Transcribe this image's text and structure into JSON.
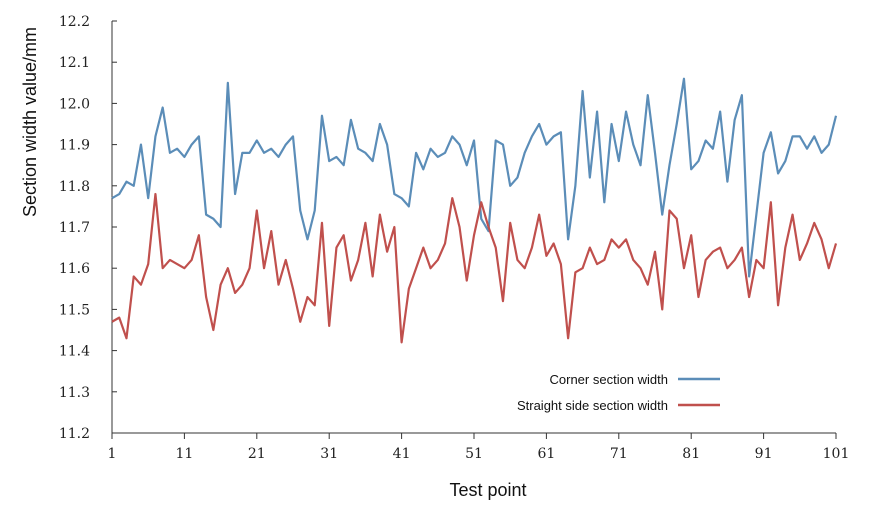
{
  "chart_data": {
    "type": "line",
    "title": "",
    "xlabel": "Test point",
    "ylabel": "Section width value/mm",
    "xlim": [
      1,
      101
    ],
    "ylim": [
      11.2,
      12.2
    ],
    "x_ticks": [
      "1",
      "11",
      "21",
      "31",
      "41",
      "51",
      "61",
      "71",
      "81",
      "91",
      "101"
    ],
    "y_ticks": [
      "11.2",
      "11.3",
      "11.4",
      "11.5",
      "11.6",
      "11.7",
      "11.8",
      "11.9",
      "12.0",
      "12.1",
      "12.2"
    ],
    "grid": false,
    "legend_position": "bottom-right",
    "x": [
      1,
      2,
      3,
      4,
      5,
      6,
      7,
      8,
      9,
      10,
      11,
      12,
      13,
      14,
      15,
      16,
      17,
      18,
      19,
      20,
      21,
      22,
      23,
      24,
      25,
      26,
      27,
      28,
      29,
      30,
      31,
      32,
      33,
      34,
      35,
      36,
      37,
      38,
      39,
      40,
      41,
      42,
      43,
      44,
      45,
      46,
      47,
      48,
      49,
      50,
      51,
      52,
      53,
      54,
      55,
      56,
      57,
      58,
      59,
      60,
      61,
      62,
      63,
      64,
      65,
      66,
      67,
      68,
      69,
      70,
      71,
      72,
      73,
      74,
      75,
      76,
      77,
      78,
      79,
      80,
      81,
      82,
      83,
      84,
      85,
      86,
      87,
      88,
      89,
      90,
      91,
      92,
      93,
      94,
      95,
      96,
      97,
      98,
      99,
      100,
      101
    ],
    "series": [
      {
        "name": "Corner section width",
        "color": "#5b8db8",
        "values": [
          11.77,
          11.78,
          11.81,
          11.8,
          11.9,
          11.77,
          11.92,
          11.99,
          11.88,
          11.89,
          11.87,
          11.9,
          11.92,
          11.73,
          11.72,
          11.7,
          12.05,
          11.78,
          11.88,
          11.88,
          11.91,
          11.88,
          11.89,
          11.87,
          11.9,
          11.92,
          11.74,
          11.67,
          11.74,
          11.97,
          11.86,
          11.87,
          11.85,
          11.96,
          11.89,
          11.88,
          11.86,
          11.95,
          11.9,
          11.78,
          11.77,
          11.75,
          11.88,
          11.84,
          11.89,
          11.87,
          11.88,
          11.92,
          11.9,
          11.85,
          11.91,
          11.72,
          11.69,
          11.91,
          11.9,
          11.8,
          11.82,
          11.88,
          11.92,
          11.95,
          11.9,
          11.92,
          11.93,
          11.67,
          11.8,
          12.03,
          11.82,
          11.98,
          11.76,
          11.95,
          11.86,
          11.98,
          11.9,
          11.85,
          12.02,
          11.88,
          11.73,
          11.85,
          11.95,
          12.06,
          11.84,
          11.86,
          11.91,
          11.89,
          11.98,
          11.81,
          11.96,
          12.02,
          11.58,
          11.73,
          11.88,
          11.93,
          11.83,
          11.86,
          11.92,
          11.92,
          11.89,
          11.92,
          11.88,
          11.9,
          11.97
        ]
      },
      {
        "name": "Straight side section width",
        "color": "#c0504d",
        "values": [
          11.47,
          11.48,
          11.43,
          11.58,
          11.56,
          11.61,
          11.78,
          11.6,
          11.62,
          11.61,
          11.6,
          11.62,
          11.68,
          11.53,
          11.45,
          11.56,
          11.6,
          11.54,
          11.56,
          11.6,
          11.74,
          11.6,
          11.69,
          11.56,
          11.62,
          11.55,
          11.47,
          11.53,
          11.51,
          11.71,
          11.46,
          11.65,
          11.68,
          11.57,
          11.62,
          11.71,
          11.58,
          11.73,
          11.64,
          11.7,
          11.42,
          11.55,
          11.6,
          11.65,
          11.6,
          11.62,
          11.66,
          11.77,
          11.7,
          11.57,
          11.68,
          11.76,
          11.7,
          11.65,
          11.52,
          11.71,
          11.62,
          11.6,
          11.65,
          11.73,
          11.63,
          11.66,
          11.61,
          11.43,
          11.59,
          11.6,
          11.65,
          11.61,
          11.62,
          11.67,
          11.65,
          11.67,
          11.62,
          11.6,
          11.56,
          11.64,
          11.5,
          11.74,
          11.72,
          11.6,
          11.68,
          11.53,
          11.62,
          11.64,
          11.65,
          11.6,
          11.62,
          11.65,
          11.53,
          11.62,
          11.6,
          11.76,
          11.51,
          11.65,
          11.73,
          11.62,
          11.66,
          11.71,
          11.67,
          11.6,
          11.66
        ]
      }
    ]
  }
}
